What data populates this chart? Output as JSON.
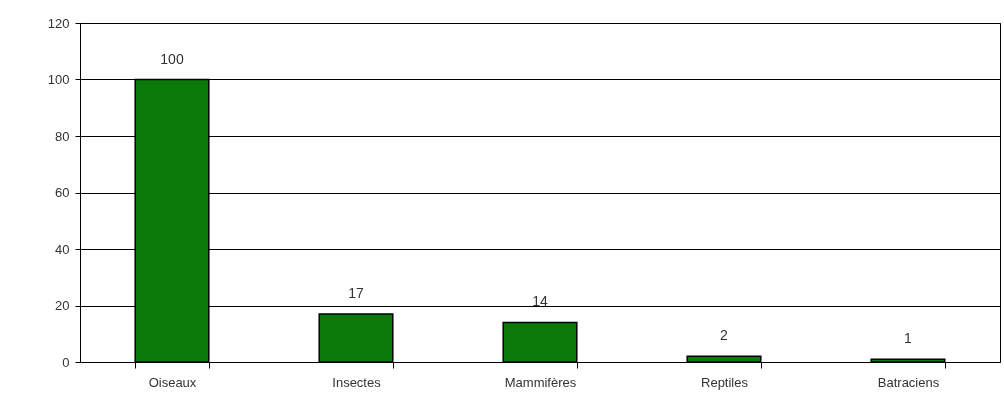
{
  "chart_data": {
    "type": "bar",
    "categories": [
      "Oiseaux",
      "Insectes",
      "Mammifères",
      "Reptiles",
      "Batraciens"
    ],
    "values": [
      100,
      17,
      14,
      2,
      1
    ],
    "color": "#0b7a0b",
    "ylim": [
      0,
      120
    ],
    "yticks": [
      0,
      20,
      40,
      60,
      80,
      100,
      120
    ],
    "grid": "y",
    "data_labels": true
  }
}
